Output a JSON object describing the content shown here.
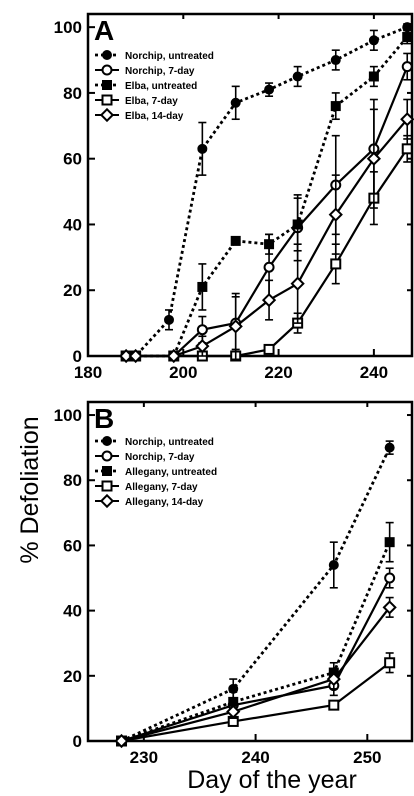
{
  "ylabel": "% Defoliation",
  "xlabel": "Day of the year",
  "chart_data": [
    {
      "type": "line",
      "panel": "A",
      "xlim": [
        180,
        248
      ],
      "ylim": [
        0,
        104
      ],
      "x_ticks": [
        180,
        200,
        220,
        240
      ],
      "y_ticks": [
        0,
        20,
        40,
        60,
        80,
        100
      ],
      "legend_position": "top-left",
      "series": [
        {
          "name": "Norchip, untreated",
          "style": "dotted",
          "marker": "filled-circle",
          "x": [
            188,
            190,
            197,
            204,
            211,
            218,
            224,
            232,
            240,
            247
          ],
          "y": [
            0,
            0,
            11,
            63,
            77,
            81,
            85,
            90,
            96,
            100
          ],
          "err": [
            0,
            0,
            3,
            8,
            5,
            2,
            3,
            3,
            3,
            1
          ]
        },
        {
          "name": "Norchip, 7-day",
          "style": "solid",
          "marker": "open-circle",
          "x": [
            188,
            190,
            198,
            204,
            211,
            218,
            224,
            232,
            240,
            247
          ],
          "y": [
            0,
            0,
            0,
            8,
            10,
            27,
            39,
            52,
            63,
            88
          ],
          "err": [
            0,
            0,
            0,
            4,
            8,
            10,
            10,
            15,
            15,
            4
          ]
        },
        {
          "name": "Elba, untreated",
          "style": "dotted",
          "marker": "filled-square",
          "x": [
            188,
            190,
            198,
            204,
            211,
            218,
            224,
            232,
            240,
            247
          ],
          "y": [
            0,
            0,
            0,
            21,
            35,
            34,
            40,
            76,
            85,
            97
          ],
          "err": [
            0,
            0,
            0,
            7,
            1,
            3,
            8,
            4,
            3,
            2
          ]
        },
        {
          "name": "Elba, 7-day",
          "style": "solid",
          "marker": "open-square",
          "x": [
            188,
            190,
            198,
            204,
            211,
            218,
            224,
            232,
            240,
            247
          ],
          "y": [
            0,
            0,
            0,
            0,
            0,
            2,
            10,
            28,
            48,
            63
          ],
          "err": [
            0,
            0,
            0,
            0,
            0,
            1,
            3,
            6,
            8,
            4
          ]
        },
        {
          "name": "Elba, 14-day",
          "style": "solid",
          "marker": "open-diamond",
          "x": [
            188,
            190,
            198,
            204,
            211,
            218,
            224,
            232,
            240,
            247
          ],
          "y": [
            0,
            0,
            0,
            3,
            9,
            17,
            22,
            43,
            60,
            72
          ],
          "err": [
            0,
            0,
            0,
            3,
            10,
            6,
            12,
            12,
            15,
            6
          ]
        }
      ]
    },
    {
      "type": "line",
      "panel": "B",
      "xlim": [
        225,
        254
      ],
      "ylim": [
        0,
        104
      ],
      "x_ticks": [
        230,
        240,
        250
      ],
      "y_ticks": [
        0,
        20,
        40,
        60,
        80,
        100
      ],
      "legend_position": "top-left",
      "series": [
        {
          "name": "Norchip, untreated",
          "style": "dotted",
          "marker": "filled-circle",
          "x": [
            228,
            238,
            247,
            252
          ],
          "y": [
            0,
            16,
            54,
            90
          ],
          "err": [
            0,
            3,
            7,
            2
          ]
        },
        {
          "name": "Norchip, 7-day",
          "style": "solid",
          "marker": "open-circle",
          "x": [
            228,
            238,
            247,
            252
          ],
          "y": [
            0,
            11,
            17,
            50
          ],
          "err": [
            0,
            2,
            3,
            3
          ]
        },
        {
          "name": "Allegany, untreated",
          "style": "dotted",
          "marker": "filled-square",
          "x": [
            228,
            238,
            247,
            252
          ],
          "y": [
            0,
            12,
            21,
            61
          ],
          "err": [
            0,
            3,
            3,
            6
          ]
        },
        {
          "name": "Allegany, 7-day",
          "style": "solid",
          "marker": "open-square",
          "x": [
            228,
            238,
            247,
            252
          ],
          "y": [
            0,
            6,
            11,
            24
          ],
          "err": [
            0,
            1,
            1,
            3
          ]
        },
        {
          "name": "Allegany, 14-day",
          "style": "solid",
          "marker": "open-diamond",
          "x": [
            228,
            238,
            247,
            252
          ],
          "y": [
            0,
            9,
            19,
            41
          ],
          "err": [
            0,
            2,
            3,
            3
          ]
        }
      ]
    }
  ]
}
